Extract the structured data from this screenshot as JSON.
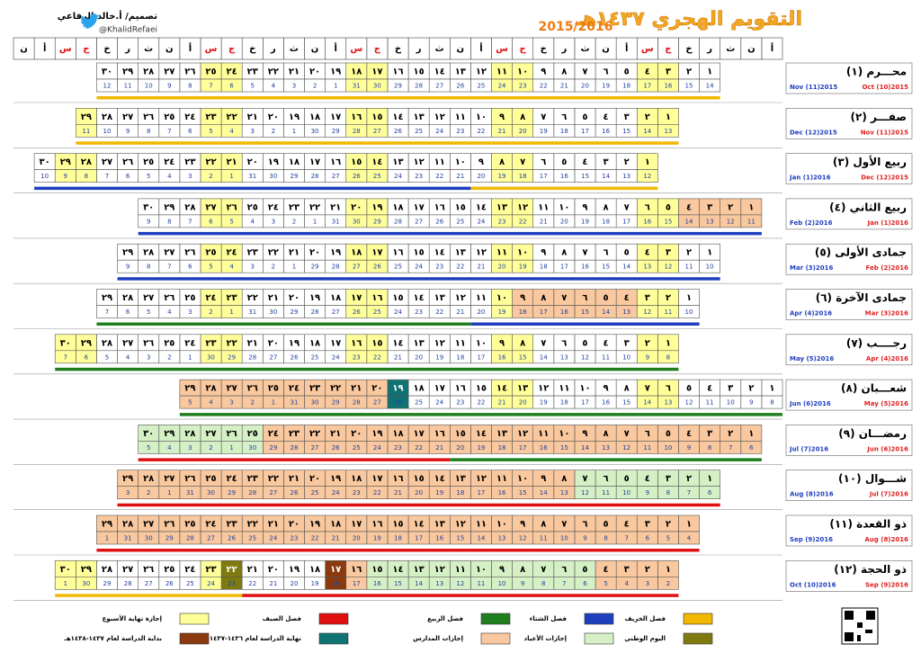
{
  "header": {
    "title": "التقويم الهجري ١٤٣٧هـ",
    "years": "2015/2016",
    "designer": "تصميم/ أ.خالد الرفاعي",
    "handle": "@KhalidRefaei"
  },
  "weekdays": [
    "أ",
    "ن",
    "ث",
    "ر",
    "خ",
    "ج",
    "س"
  ],
  "weekend": [
    5,
    6
  ],
  "hijri_days": [
    "١",
    "٢",
    "٣",
    "٤",
    "٥",
    "٦",
    "٧",
    "٨",
    "٩",
    "١٠",
    "١١",
    "١٢",
    "١٣",
    "١٤",
    "١٥",
    "١٦",
    "١٧",
    "١٨",
    "١٩",
    "٢٠",
    "٢١",
    "٢٢",
    "٢٣",
    "٢٤",
    "٢٥",
    "٢٦",
    "٢٧",
    "٢٨",
    "٢٩",
    "٣٠"
  ],
  "legend": [
    {
      "label": "فصل الخريف",
      "color": "#f2b800"
    },
    {
      "label": "فصل الشتاء",
      "color": "#1f3fbf"
    },
    {
      "label": "فصل الربيع",
      "color": "#1f7f1f"
    },
    {
      "label": "فصل الصيف",
      "color": "#e01010"
    },
    {
      "label": "إجازة نهاية الأسبوع",
      "color": "#ffff99"
    },
    {
      "label": "اليوم الوطني",
      "color": "#7f7a10"
    },
    {
      "label": "إجازات الأعياد",
      "color": "#d6f0c6"
    },
    {
      "label": "إجازات المدارس",
      "color": "#f9c89e"
    },
    {
      "label": "نهاية الدراسة لعام ١٤٣٦-١٤٣٧هـ",
      "color": "#0f7373"
    },
    {
      "label": "بداية الدراسة لعام ١٤٣٧-١٤٣٨هـ",
      "color": "#8b3a10"
    }
  ],
  "months": [
    {
      "name": "محـــرم (١)",
      "from_label": "Oct (10)2015",
      "to_label": "Nov (11)2015",
      "weekday": 3,
      "gregorian": [
        14,
        15,
        16,
        17,
        18,
        19,
        20,
        21,
        22,
        23,
        24,
        25,
        26,
        27,
        28,
        29,
        30,
        31,
        1,
        2,
        3,
        4,
        5,
        6,
        7,
        8,
        9,
        10,
        11,
        12
      ],
      "highlights": [],
      "seasons": [
        [
          0,
          1,
          30
        ]
      ]
    },
    {
      "name": "صفـــر (٢)",
      "from_label": "Nov (11)2015",
      "to_label": "Dec (12)2015",
      "weekday": 5,
      "gregorian": [
        13,
        14,
        15,
        16,
        17,
        18,
        19,
        20,
        21,
        22,
        23,
        24,
        25,
        26,
        27,
        28,
        29,
        30,
        1,
        2,
        3,
        4,
        5,
        6,
        7,
        8,
        9,
        10,
        11
      ],
      "highlights": [],
      "seasons": [
        [
          0,
          1,
          29
        ]
      ]
    },
    {
      "name": "ربيع الأول (٣)",
      "from_label": "Dec (12)2015",
      "to_label": "Jan (1)2016",
      "weekday": 6,
      "gregorian": [
        12,
        13,
        14,
        15,
        16,
        17,
        18,
        19,
        20,
        21,
        22,
        23,
        24,
        25,
        26,
        27,
        28,
        29,
        30,
        31,
        1,
        2,
        3,
        4,
        5,
        6,
        7,
        8,
        9,
        10
      ],
      "highlights": [],
      "seasons": [
        [
          0,
          1,
          9
        ],
        [
          1,
          10,
          30
        ]
      ]
    },
    {
      "name": "ربيع الثاني (٤)",
      "from_label": "Jan (1)2016",
      "to_label": "Feb (2)2016",
      "weekday": 1,
      "gregorian": [
        11,
        12,
        13,
        14,
        15,
        16,
        17,
        18,
        19,
        20,
        21,
        22,
        23,
        24,
        25,
        26,
        27,
        28,
        29,
        30,
        31,
        1,
        2,
        3,
        4,
        5,
        6,
        7,
        8,
        9
      ],
      "highlights": [
        [
          7,
          1,
          4
        ]
      ],
      "seasons": [
        [
          1,
          1,
          30
        ]
      ]
    },
    {
      "name": "جمادى الأولى (٥)",
      "from_label": "Feb (2)2016",
      "to_label": "Mar (3)2016",
      "weekday": 3,
      "gregorian": [
        10,
        11,
        12,
        13,
        14,
        15,
        16,
        17,
        18,
        19,
        20,
        21,
        22,
        23,
        24,
        25,
        26,
        27,
        28,
        29,
        1,
        2,
        3,
        4,
        5,
        6,
        7,
        8,
        9
      ],
      "highlights": [],
      "seasons": [
        [
          1,
          1,
          29
        ]
      ]
    },
    {
      "name": "جمادى الآخرة (٦)",
      "from_label": "Mar (3)2016",
      "to_label": "Apr (4)2016",
      "weekday": 4,
      "gregorian": [
        10,
        11,
        12,
        13,
        14,
        15,
        16,
        17,
        18,
        19,
        20,
        21,
        22,
        23,
        24,
        25,
        26,
        27,
        28,
        29,
        30,
        31,
        1,
        2,
        3,
        4,
        5,
        6,
        7
      ],
      "highlights": [
        [
          7,
          4,
          9
        ]
      ],
      "seasons": [
        [
          1,
          1,
          11
        ],
        [
          2,
          12,
          29
        ]
      ]
    },
    {
      "name": "رجــــب (٧)",
      "from_label": "Apr (4)2016",
      "to_label": "May (5)2016",
      "weekday": 5,
      "gregorian": [
        8,
        9,
        10,
        11,
        12,
        13,
        14,
        15,
        16,
        17,
        18,
        19,
        20,
        21,
        22,
        23,
        24,
        25,
        26,
        27,
        28,
        29,
        30,
        1,
        2,
        3,
        4,
        5,
        6,
        7
      ],
      "highlights": [],
      "seasons": [
        [
          2,
          1,
          30
        ]
      ]
    },
    {
      "name": "شعـــبان (٨)",
      "from_label": "May (5)2016",
      "to_label": "Jun (6)2016",
      "weekday": 0,
      "gregorian": [
        8,
        9,
        10,
        11,
        12,
        13,
        14,
        15,
        16,
        17,
        18,
        19,
        20,
        21,
        22,
        23,
        24,
        25,
        26,
        27,
        28,
        29,
        30,
        31,
        1,
        2,
        3,
        4,
        5
      ],
      "highlights": [
        [
          8,
          19,
          19
        ],
        [
          7,
          20,
          29
        ]
      ],
      "seasons": [
        [
          2,
          1,
          29
        ]
      ]
    },
    {
      "name": "رمضـــان (٩)",
      "from_label": "Jun (6)2016",
      "to_label": "Jul (7)2016",
      "weekday": 1,
      "gregorian": [
        6,
        7,
        8,
        9,
        10,
        11,
        12,
        13,
        14,
        15,
        16,
        17,
        18,
        19,
        20,
        21,
        22,
        23,
        24,
        25,
        26,
        27,
        28,
        29,
        30,
        1,
        2,
        3,
        4,
        5
      ],
      "highlights": [
        [
          7,
          1,
          24
        ],
        [
          6,
          25,
          30
        ]
      ],
      "seasons": [
        [
          2,
          1,
          15
        ],
        [
          3,
          16,
          30
        ]
      ]
    },
    {
      "name": "شـــوال (١٠)",
      "from_label": "Jul (7)2016",
      "to_label": "Aug (8)2016",
      "weekday": 3,
      "gregorian": [
        6,
        7,
        8,
        9,
        10,
        11,
        12,
        13,
        14,
        15,
        16,
        17,
        18,
        19,
        20,
        21,
        22,
        23,
        24,
        25,
        26,
        27,
        28,
        29,
        30,
        31,
        1,
        2,
        3
      ],
      "highlights": [
        [
          6,
          1,
          7
        ],
        [
          7,
          8,
          29
        ]
      ],
      "seasons": [
        [
          3,
          1,
          29
        ]
      ]
    },
    {
      "name": "ذو القعدة (١١)",
      "from_label": "Aug (8)2016",
      "to_label": "Sep (9)2016",
      "weekday": 4,
      "gregorian": [
        4,
        5,
        6,
        7,
        8,
        9,
        10,
        11,
        12,
        13,
        14,
        15,
        16,
        17,
        18,
        19,
        20,
        21,
        22,
        23,
        24,
        25,
        26,
        27,
        28,
        29,
        30,
        31,
        1
      ],
      "highlights": [
        [
          7,
          1,
          29
        ]
      ],
      "seasons": [
        [
          3,
          1,
          29
        ]
      ]
    },
    {
      "name": "ذو الحجة (١٢)",
      "from_label": "Sep (9)2016",
      "to_label": "Oct (10)2016",
      "weekday": 5,
      "gregorian": [
        2,
        3,
        4,
        5,
        6,
        7,
        8,
        9,
        10,
        11,
        12,
        13,
        14,
        15,
        16,
        17,
        18,
        19,
        20,
        21,
        22,
        23,
        24,
        25,
        26,
        27,
        28,
        29,
        30,
        1
      ],
      "highlights": [
        [
          7,
          1,
          4
        ],
        [
          6,
          5,
          15
        ],
        [
          7,
          16,
          16
        ],
        [
          9,
          17,
          17
        ],
        [
          5,
          22,
          22
        ]
      ],
      "seasons": [
        [
          3,
          1,
          21
        ],
        [
          0,
          22,
          30
        ]
      ]
    }
  ]
}
